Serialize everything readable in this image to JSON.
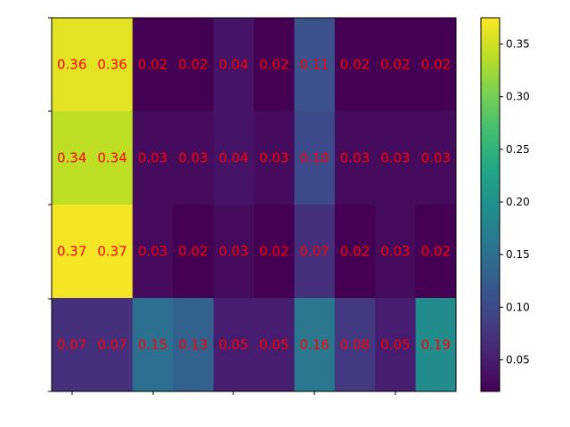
{
  "chart_data": {
    "type": "heatmap",
    "title": "",
    "xlabel": "",
    "ylabel": "",
    "rows": 4,
    "cols": 10,
    "values": [
      [
        0.36,
        0.36,
        0.02,
        0.02,
        0.04,
        0.02,
        0.11,
        0.02,
        0.02,
        0.02
      ],
      [
        0.34,
        0.34,
        0.03,
        0.03,
        0.04,
        0.03,
        0.1,
        0.03,
        0.03,
        0.03
      ],
      [
        0.37,
        0.37,
        0.03,
        0.02,
        0.03,
        0.02,
        0.07,
        0.02,
        0.03,
        0.02
      ],
      [
        0.07,
        0.07,
        0.15,
        0.13,
        0.05,
        0.05,
        0.16,
        0.08,
        0.05,
        0.19
      ]
    ],
    "labels": [
      [
        "0.36",
        "0.36",
        "0.02",
        "0.02",
        "0.04",
        "0.02",
        "0.11",
        "0.02",
        "0.02",
        "0.02"
      ],
      [
        "0.34",
        "0.34",
        "0.03",
        "0.03",
        "0.04",
        "0.03",
        "0.10",
        "0.03",
        "0.03",
        "0.03"
      ],
      [
        "0.37",
        "0.37",
        "0.03",
        "0.02",
        "0.03",
        "0.02",
        "0.07",
        "0.02",
        "0.03",
        "0.02"
      ],
      [
        "0.07",
        "0.07",
        "0.15",
        "0.13",
        "0.05",
        "0.05",
        "0.16",
        "0.08",
        "0.05",
        "0.19"
      ]
    ],
    "label_color": "#ff0000",
    "colormap": "viridis",
    "color_range": [
      0.02,
      0.375
    ],
    "colorbar": {
      "ticks": [
        0.05,
        0.1,
        0.15,
        0.2,
        0.25,
        0.3,
        0.35
      ],
      "tick_labels": [
        "0.05",
        "0.10",
        "0.15",
        "0.20",
        "0.25",
        "0.30",
        "0.35"
      ]
    },
    "x_tick_labels": [
      "",
      "",
      "",
      "",
      ""
    ],
    "y_tick_labels": [
      "",
      "",
      "",
      "",
      ""
    ],
    "grid": false,
    "legend": "none"
  }
}
